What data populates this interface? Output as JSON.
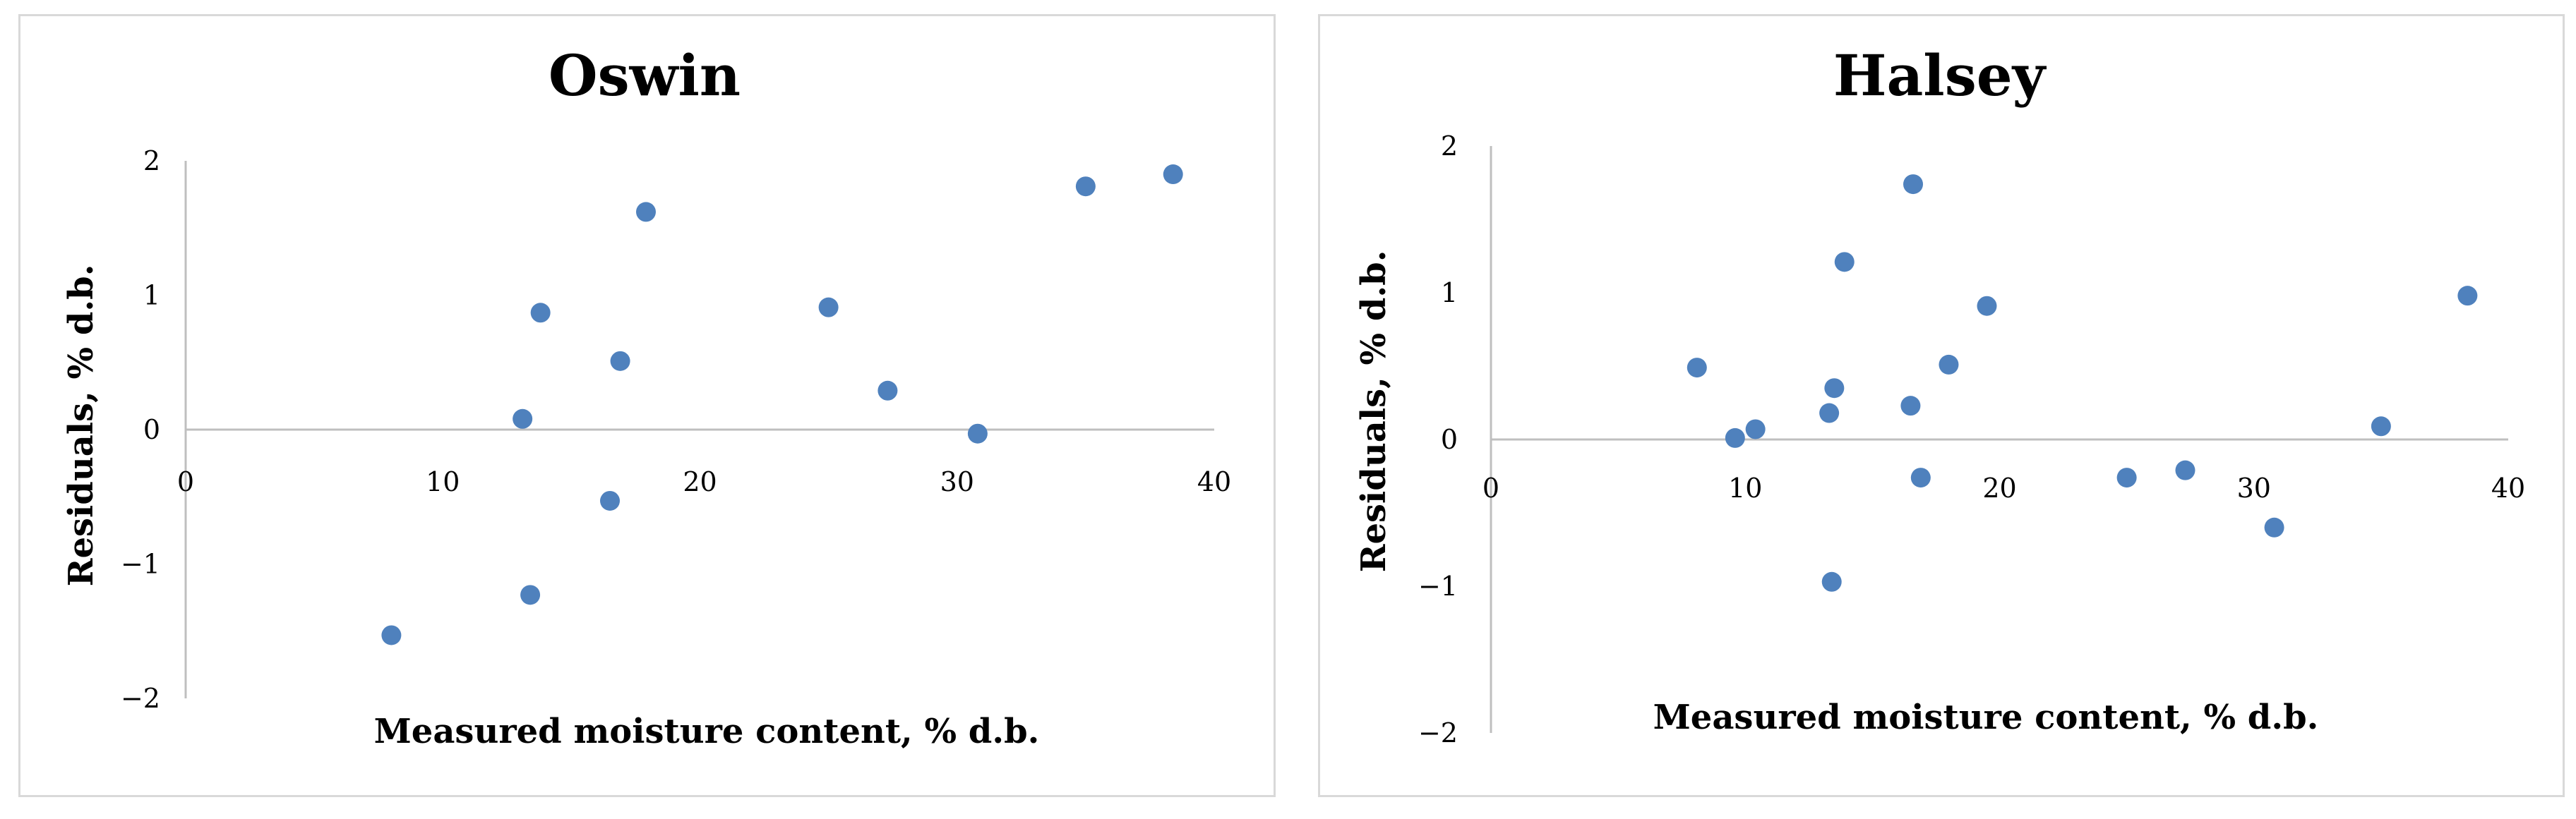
{
  "chart_data": [
    {
      "type": "scatter",
      "title": "Oswin",
      "xlabel": "Measured moisture content, % d.b.",
      "ylabel": "Residuals, % d.b.",
      "xlim": [
        0,
        40
      ],
      "ylim": [
        -2,
        2
      ],
      "xticks": [
        "0",
        "10",
        "20",
        "30",
        "40"
      ],
      "yticks": [
        "2",
        "1",
        "0",
        "−1",
        "−2"
      ],
      "grid": false,
      "legend": "none",
      "marker_color": "#4f81bd",
      "series": [
        {
          "x": [
            8.0,
            13.1,
            13.4,
            13.8,
            16.5,
            16.9,
            17.9,
            25.0,
            27.3,
            30.8,
            35.0,
            38.4
          ],
          "y": [
            -1.53,
            0.08,
            -1.23,
            0.87,
            -0.53,
            0.51,
            1.62,
            0.91,
            0.29,
            -0.03,
            1.81,
            1.9
          ]
        }
      ]
    },
    {
      "type": "scatter",
      "title": "Halsey",
      "xlabel": "Measured moisture content, % d.b.",
      "ylabel": "Residuals, % d.b.",
      "xlim": [
        0,
        40
      ],
      "ylim": [
        -2,
        2
      ],
      "xticks": [
        "0",
        "10",
        "20",
        "30",
        "40"
      ],
      "yticks": [
        "2",
        "1",
        "0",
        "−1",
        "−2"
      ],
      "grid": false,
      "legend": "none",
      "marker_color": "#4f81bd",
      "series": [
        {
          "x": [
            8.1,
            9.6,
            10.4,
            13.3,
            13.4,
            13.5,
            13.9,
            16.5,
            16.6,
            16.9,
            18.0,
            19.5,
            25.0,
            27.3,
            30.8,
            35.0,
            38.4
          ],
          "y": [
            0.49,
            0.01,
            0.07,
            0.18,
            -0.97,
            0.35,
            1.21,
            0.23,
            1.74,
            -0.26,
            0.51,
            0.91,
            -0.26,
            -0.21,
            -0.6,
            0.09,
            0.98
          ]
        }
      ]
    }
  ]
}
